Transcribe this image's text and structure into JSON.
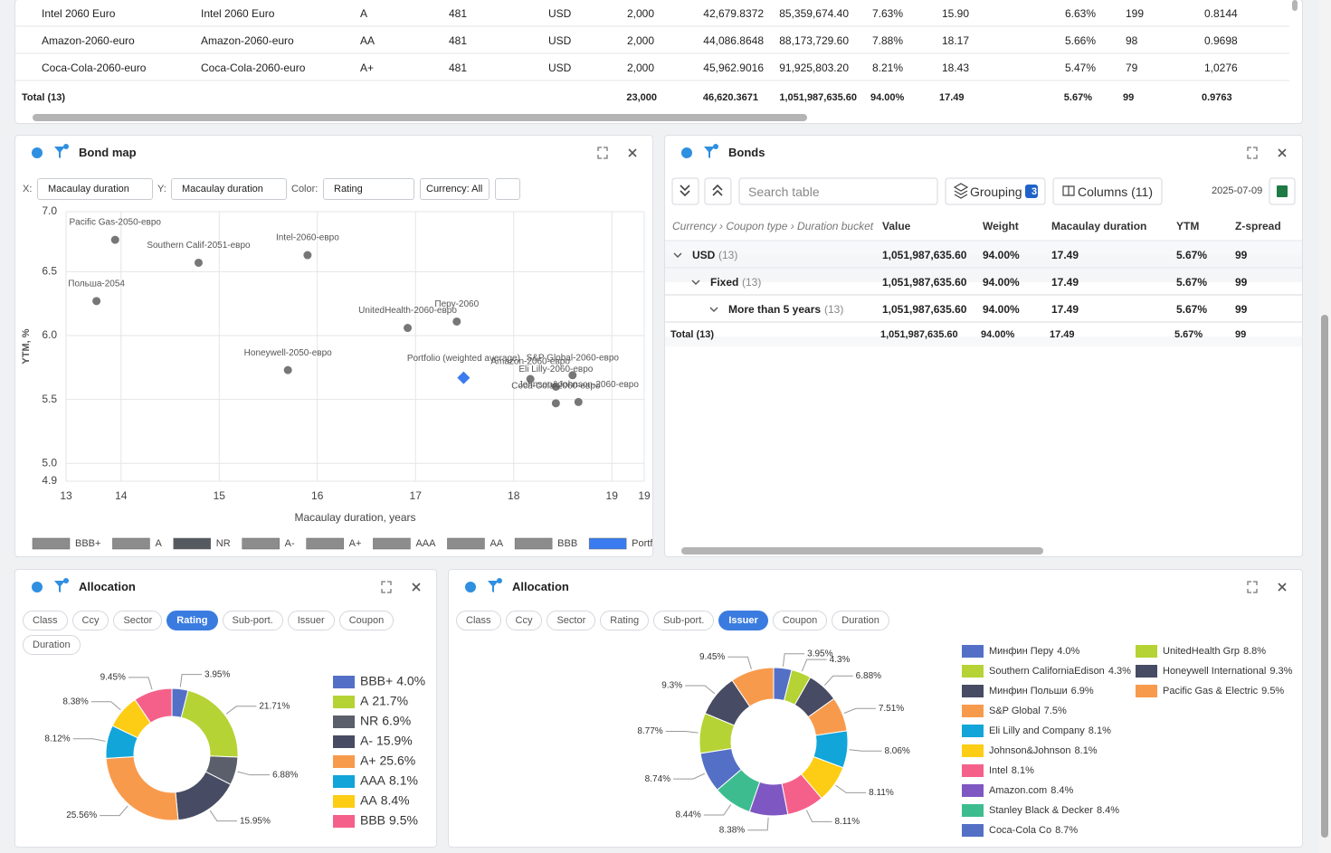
{
  "top_table": {
    "rows": [
      [
        "Intel 2060 Euro",
        "Intel 2060 Euro",
        "A",
        "481",
        "USD",
        "2,000",
        "42,679.8372",
        "85,359,674.40",
        "7.63%",
        "15.90",
        "6.63%",
        "199",
        "0.8144"
      ],
      [
        "Amazon-2060-euro",
        "Amazon-2060-euro",
        "AA",
        "481",
        "USD",
        "2,000",
        "44,086.8648",
        "88,173,729.60",
        "7.88%",
        "18.17",
        "5.66%",
        "98",
        "0.9698"
      ],
      [
        "Coca-Cola-2060-euro",
        "Coca-Cola-2060-euro",
        "A+",
        "481",
        "USD",
        "2,000",
        "45,962.9016",
        "91,925,803.20",
        "8.21%",
        "18.43",
        "5.47%",
        "79",
        "1,0276"
      ]
    ],
    "total": [
      "Total (13)",
      "23,000",
      "46,620.3671",
      "1,051,987,635.60",
      "94.00%",
      "17.49",
      "5.67%",
      "99",
      "0.9763"
    ]
  },
  "bond_map": {
    "title": "Bond map",
    "controls": {
      "x_label": "X:",
      "x_value": "Macaulay duration",
      "y_label": "Y:",
      "y_value": "Macaulay duration",
      "color_label": "Color:",
      "color_value": "Rating",
      "currency": "Currency: All"
    },
    "chart_data": {
      "type": "scatter",
      "x_label": "Macaulay duration, years",
      "y_label": "YTM, %",
      "xlim": [
        13.44,
        19.33
      ],
      "xticks": [
        {
          "value": 13.44,
          "label": "13"
        },
        14,
        15,
        16,
        17,
        18,
        19,
        {
          "value": 19.33,
          "label": "19"
        }
      ],
      "ylim": [
        4.86,
        6.97
      ],
      "yticks": [
        {
          "value": 6.97,
          "label": "7.0"
        },
        {
          "value": 6.5,
          "label": "6.5"
        },
        {
          "value": 6.0,
          "label": "6.0"
        },
        {
          "value": 5.5,
          "label": "5.5"
        },
        {
          "value": 5.0,
          "label": "5.0"
        },
        {
          "value": 4.86,
          "label": "4.9"
        }
      ],
      "grid": true,
      "point_color": "#777777",
      "points": [
        {
          "name": "Pacific Gas-2050-евро",
          "x": 13.94,
          "y": 6.75
        },
        {
          "name": "Southern Calif-2051-евро",
          "x": 14.79,
          "y": 6.57
        },
        {
          "name": "Intel-2060-евро",
          "x": 15.9,
          "y": 6.63
        },
        {
          "name": "Польша-2054",
          "x": 13.75,
          "y": 6.27
        },
        {
          "name": "UnitedHealth-2060-евро",
          "x": 16.92,
          "y": 6.06
        },
        {
          "name": "Перу-2060",
          "x": 17.42,
          "y": 6.11
        },
        {
          "name": "Honeywell-2050-евро",
          "x": 15.7,
          "y": 5.73
        },
        {
          "name": "S&P Global-2060-евро",
          "x": 18.6,
          "y": 5.69
        },
        {
          "name": "Amazon-2060-евро",
          "x": 18.17,
          "y": 5.66
        },
        {
          "name": "Eli Lilly-2060-евро",
          "x": 18.43,
          "y": 5.6
        },
        {
          "name": "Johnson&Johnson-2060-евро",
          "x": 18.66,
          "y": 5.48
        },
        {
          "name": "Coca-Cola-2060-евро",
          "x": 18.43,
          "y": 5.47
        }
      ],
      "portfolio": {
        "name": "Portfolio (weighted average)",
        "x": 17.49,
        "y": 5.67,
        "color": "#3b7bf0"
      },
      "legend": [
        {
          "name": "BBB+",
          "color": "#8c8c8c"
        },
        {
          "name": "A",
          "color": "#8c8c8c"
        },
        {
          "name": "NR",
          "color": "#555a60"
        },
        {
          "name": "A-",
          "color": "#8c8c8c"
        },
        {
          "name": "A+",
          "color": "#8c8c8c"
        },
        {
          "name": "AAA",
          "color": "#8c8c8c"
        },
        {
          "name": "AA",
          "color": "#8c8c8c"
        },
        {
          "name": "BBB",
          "color": "#8c8c8c"
        },
        {
          "name": "Portfolio",
          "color": "#3b7bf0"
        }
      ]
    }
  },
  "bonds": {
    "title": "Bonds",
    "search_placeholder": "Search table",
    "grouping": "Grouping",
    "grouping_count": "3",
    "columns": "Columns (11)",
    "date": "2025-07-09",
    "header": [
      "Currency › Coupon type › Duration bucket",
      "Value",
      "Weight",
      "Macaulay duration",
      "YTM",
      "Z-spread"
    ],
    "rows": [
      {
        "label": "USD",
        "count": "(13)",
        "cells": [
          "1,051,987,635.60",
          "94.00%",
          "17.49",
          "5.67%",
          "99"
        ]
      },
      {
        "label": "Fixed",
        "count": "(13)",
        "cells": [
          "1,051,987,635.60",
          "94.00%",
          "17.49",
          "5.67%",
          "99"
        ]
      },
      {
        "label": "More than 5 years",
        "count": "(13)",
        "cells": [
          "1,051,987,635.60",
          "94.00%",
          "17.49",
          "5.67%",
          "99"
        ]
      }
    ],
    "total": {
      "label": "Total (13)",
      "cells": [
        "1,051,987,635.60",
        "94.00%",
        "17.49",
        "5.67%",
        "99"
      ]
    }
  },
  "allocation_left": {
    "title": "Allocation",
    "tabs": [
      "Class",
      "Ccy",
      "Sector",
      "Rating",
      "Sub-port.",
      "Issuer",
      "Coupon",
      "Duration"
    ],
    "active_tab": "Rating",
    "chart_data": {
      "type": "donut",
      "categories": [
        "BBB+",
        "A",
        "NR",
        "A-",
        "A+",
        "AAA",
        "AA",
        "BBB"
      ],
      "values": [
        3.95,
        21.71,
        6.88,
        15.95,
        25.56,
        8.12,
        8.38,
        9.45
      ],
      "value_labels": [
        "3.95%",
        "21.71%",
        "6.88%",
        "15.95%",
        "25.56%",
        "8.12%",
        "8.38%",
        "9.45%"
      ],
      "legend_labels": [
        "4.0%",
        "21.7%",
        "6.9%",
        "15.9%",
        "25.6%",
        "8.1%",
        "8.4%",
        "9.5%"
      ],
      "colors": [
        "#5470c6",
        "#b5d334",
        "#5a5f6b",
        "#474b63",
        "#f89a4c",
        "#12a5d9",
        "#fccd14",
        "#f5608a"
      ]
    }
  },
  "allocation_right": {
    "title": "Allocation",
    "tabs": [
      "Class",
      "Ccy",
      "Sector",
      "Rating",
      "Sub-port.",
      "Issuer",
      "Coupon",
      "Duration"
    ],
    "active_tab": "Issuer",
    "chart_data": {
      "type": "donut",
      "categories": [
        "Минфин Перу",
        "Southern CaliforniaEdison",
        "Минфин Польши",
        "S&P Global",
        "Eli Lilly and Company",
        "Johnson&Johnson",
        "Intel",
        "Amazon.com",
        "Stanley Black & Decker",
        "Coca-Cola Co",
        "UnitedHealth Grp",
        "Honeywell International",
        "Pacific Gas & Electric"
      ],
      "values": [
        3.95,
        4.3,
        6.88,
        7.51,
        8.06,
        8.11,
        8.11,
        8.38,
        8.44,
        8.74,
        8.77,
        9.3,
        9.45
      ],
      "value_labels": [
        "3.95%",
        "4.3%",
        "6.88%",
        "7.51%",
        "8.06%",
        "8.11%",
        "8.11%",
        "8.38%",
        "8.44%",
        "8.74%",
        "8.77%",
        "9.3%",
        "9.45%"
      ],
      "legend_labels": [
        "4.0%",
        "4.3%",
        "6.9%",
        "7.5%",
        "8.1%",
        "8.1%",
        "8.1%",
        "8.4%",
        "8.4%",
        "8.7%",
        "8.8%",
        "9.3%",
        "9.5%"
      ],
      "colors": [
        "#5470c6",
        "#b5d334",
        "#474b63",
        "#f89a4c",
        "#12a5d9",
        "#fccd14",
        "#f5608a",
        "#7e57c2",
        "#3dbd8f",
        "#5470c6",
        "#b5d334",
        "#474b63",
        "#f89a4c"
      ]
    }
  }
}
